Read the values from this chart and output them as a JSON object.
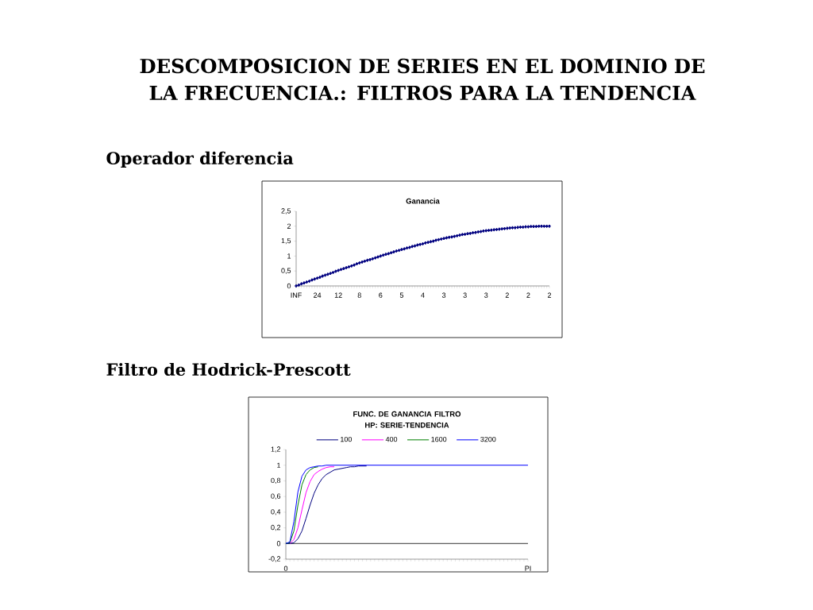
{
  "chart_data": [
    {
      "type": "line",
      "title": "Ganancia",
      "annotations": [
        "DESCOMPOSICION DE SERIES EN EL DOMINIO DE LA FRECUENCIA.: FILTROS PARA LA TENDENCIA",
        "Operador diferencia"
      ],
      "categories": [
        "INF",
        null,
        null,
        null,
        null,
        null,
        null,
        null,
        "24",
        null,
        null,
        null,
        null,
        null,
        null,
        null,
        "12",
        null,
        null,
        null,
        null,
        null,
        null,
        null,
        "8",
        null,
        null,
        null,
        null,
        null,
        null,
        null,
        "6",
        null,
        null,
        null,
        null,
        null,
        null,
        null,
        "5",
        null,
        null,
        null,
        null,
        null,
        null,
        null,
        "4",
        null,
        null,
        null,
        null,
        null,
        null,
        null,
        "3",
        null,
        null,
        null,
        null,
        null,
        null,
        null,
        "3",
        null,
        null,
        null,
        null,
        null,
        null,
        null,
        "3",
        null,
        null,
        null,
        null,
        null,
        null,
        null,
        "2",
        null,
        null,
        null,
        null,
        null,
        null,
        null,
        "2",
        null,
        null,
        null,
        null,
        null,
        null,
        null,
        "2"
      ],
      "series": [
        {
          "color": "#000080",
          "values": [
            0,
            0.03,
            0.07,
            0.1,
            0.13,
            0.16,
            0.2,
            0.23,
            0.26,
            0.29,
            0.33,
            0.36,
            0.39,
            0.42,
            0.45,
            0.49,
            0.52,
            0.55,
            0.58,
            0.61,
            0.64,
            0.67,
            0.7,
            0.74,
            0.77,
            0.8,
            0.83,
            0.86,
            0.88,
            0.91,
            0.94,
            0.97,
            1,
            1.03,
            1.06,
            1.08,
            1.11,
            1.14,
            1.17,
            1.19,
            1.22,
            1.24,
            1.27,
            1.29,
            1.32,
            1.34,
            1.37,
            1.39,
            1.41,
            1.44,
            1.46,
            1.48,
            1.5,
            1.53,
            1.55,
            1.57,
            1.59,
            1.61,
            1.63,
            1.64,
            1.66,
            1.68,
            1.7,
            1.72,
            1.73,
            1.75,
            1.76,
            1.78,
            1.79,
            1.81,
            1.82,
            1.84,
            1.85,
            1.86,
            1.87,
            1.88,
            1.89,
            1.9,
            1.91,
            1.92,
            1.93,
            1.94,
            1.95,
            1.95,
            1.96,
            1.97,
            1.97,
            1.98,
            1.98,
            1.99,
            1.99,
            1.99,
            2,
            2,
            2,
            2,
            2
          ]
        }
      ],
      "marker": "diamond",
      "ylim": [
        0,
        2.5
      ],
      "yticks": [
        0,
        {
          "value": 0.5,
          "label": "0,5"
        },
        1,
        {
          "value": 1.5,
          "label": "1,5"
        },
        2,
        {
          "value": 2.5,
          "label": "2,5"
        }
      ]
    },
    {
      "type": "line",
      "title": "FUNC. DE GANANCIA FILTRO HP: SERIE-TENDENCIA",
      "annotations": [
        "Filtro de Hodrick-Prescott"
      ],
      "categories": [
        "0",
        null,
        null,
        null,
        null,
        null,
        null,
        null,
        null,
        null,
        null,
        null,
        null,
        null,
        null,
        null,
        null,
        null,
        null,
        null,
        null,
        null,
        null,
        null,
        null,
        null,
        null,
        null,
        null,
        null,
        null,
        null,
        null,
        null,
        null,
        null,
        null,
        null,
        null,
        null,
        null,
        null,
        null,
        null,
        null,
        null,
        null,
        null,
        null,
        null,
        null,
        null,
        null,
        null,
        null,
        null,
        null,
        null,
        null,
        null,
        "PI"
      ],
      "series": [
        {
          "name": "100",
          "color": "#000080",
          "values": [
            0,
            0,
            0.01,
            0.06,
            0.16,
            0.32,
            0.49,
            0.64,
            0.75,
            0.83,
            0.88,
            0.91,
            0.94,
            0.95,
            0.96,
            0.97,
            0.98,
            0.98,
            0.99,
            0.99,
            0.99,
            null,
            null,
            null,
            null,
            null,
            null,
            null,
            null,
            null,
            null,
            null,
            null,
            null,
            null,
            null,
            null,
            null,
            null,
            null,
            null,
            null,
            null,
            null,
            null,
            null,
            null,
            null,
            null,
            null,
            null,
            null,
            null,
            null,
            null,
            null,
            null,
            null,
            null,
            null,
            null
          ]
        },
        {
          "name": "400",
          "color": "#ff00ff",
          "values": [
            null,
            0,
            0.05,
            0.2,
            0.43,
            0.65,
            0.79,
            0.88,
            0.92,
            0.95,
            0.97,
            0.98,
            0.98,
            null,
            null,
            null,
            null,
            null,
            null,
            null,
            null,
            null,
            null,
            null,
            null,
            null,
            null,
            null,
            null,
            null,
            null,
            null,
            null,
            null,
            null,
            null,
            null,
            null,
            null,
            null,
            null,
            null,
            null,
            null,
            null,
            null,
            null,
            null,
            null,
            null,
            null,
            null,
            null,
            null,
            null,
            null,
            null,
            null,
            null,
            null,
            null
          ]
        },
        {
          "name": "1600",
          "color": "#008000",
          "values": [
            0,
            0.01,
            0.16,
            0.49,
            0.75,
            0.88,
            0.94,
            0.97,
            0.98,
            null,
            null,
            null,
            null,
            null,
            null,
            null,
            null,
            null,
            null,
            null,
            null,
            null,
            null,
            null,
            null,
            null,
            null,
            null,
            null,
            null,
            null,
            null,
            null,
            null,
            null,
            null,
            null,
            null,
            null,
            null,
            null,
            null,
            null,
            null,
            null,
            null,
            null,
            null,
            null,
            null,
            null,
            null,
            null,
            null,
            null,
            null,
            null,
            null,
            null,
            null,
            null
          ]
        },
        {
          "name": "3200",
          "color": "#0000ff",
          "values": [
            0,
            0.02,
            0.28,
            0.66,
            0.86,
            0.94,
            0.97,
            0.98,
            0.99,
            0.99,
            1,
            1,
            1,
            1,
            1,
            1,
            1,
            1,
            1,
            1,
            1,
            1,
            1,
            1,
            1,
            1,
            1,
            1,
            1,
            1,
            1,
            1,
            1,
            1,
            1,
            1,
            1,
            1,
            1,
            1,
            1,
            1,
            1,
            1,
            1,
            1,
            1,
            1,
            1,
            1,
            1,
            1,
            1,
            1,
            1,
            1,
            1,
            1,
            1,
            1,
            1
          ]
        }
      ],
      "legend": "top",
      "ylim": [
        -0.2,
        1.2
      ],
      "yticks": [
        {
          "value": -0.2,
          "label": "-0,2"
        },
        {
          "value": 0,
          "label": "0"
        },
        {
          "value": 0.2,
          "label": "0,2"
        },
        {
          "value": 0.4,
          "label": "0,4"
        },
        {
          "value": 0.6,
          "label": "0,6"
        },
        {
          "value": 0.8,
          "label": "0,8"
        },
        {
          "value": 1,
          "label": "1"
        },
        {
          "value": 1.2,
          "label": "1,2"
        }
      ],
      "ref_lines": [
        {
          "axis": "y",
          "value": 0,
          "color": "#000000"
        }
      ]
    }
  ]
}
